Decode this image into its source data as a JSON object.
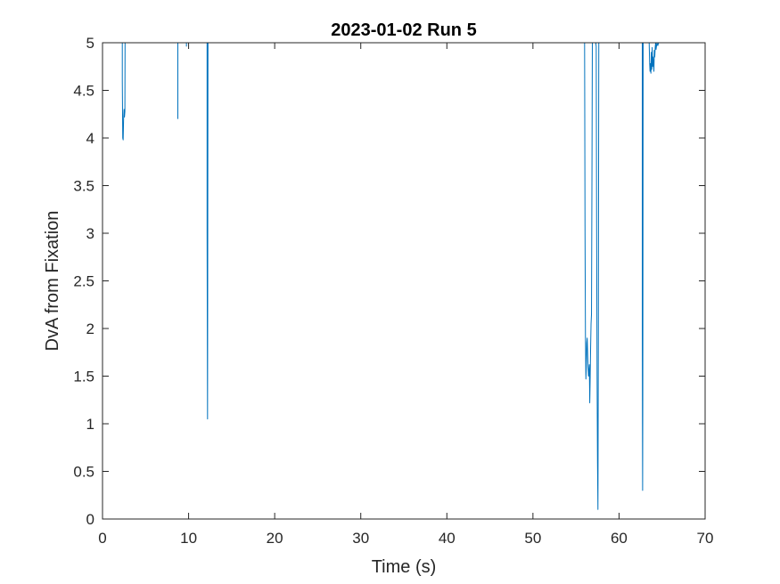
{
  "chart_data": {
    "type": "line",
    "title": "2023-01-02 Run 5",
    "xlabel": "Time (s)",
    "ylabel": "DvA from Fixation",
    "xlim": [
      0,
      70
    ],
    "ylim": [
      0,
      5
    ],
    "xticks": [
      0,
      10,
      20,
      30,
      40,
      50,
      60,
      70
    ],
    "yticks": [
      0,
      0.5,
      1,
      1.5,
      2,
      2.5,
      3,
      3.5,
      4,
      4.5,
      5
    ],
    "xtick_labels": [
      "0",
      "10",
      "20",
      "30",
      "40",
      "50",
      "60",
      "70"
    ],
    "ytick_labels": [
      "0",
      "0.5",
      "1",
      "1.5",
      "2",
      "2.5",
      "3",
      "3.5",
      "4",
      "4.5",
      "5"
    ],
    "grid": false,
    "line_color": "#0072BD",
    "series": [
      {
        "segments": [
          [
            [
              2.3,
              5
            ],
            [
              2.3,
              4.6
            ],
            [
              2.35,
              4.0
            ],
            [
              2.4,
              3.98
            ],
            [
              2.45,
              4.2
            ],
            [
              2.5,
              4.3
            ],
            [
              2.55,
              4.22
            ],
            [
              2.6,
              4.28
            ],
            [
              2.62,
              5
            ]
          ],
          [
            [
              8.75,
              5
            ],
            [
              8.75,
              4.2
            ]
          ],
          [
            [
              9.75,
              5
            ],
            [
              9.75,
              4.96
            ]
          ],
          [
            [
              12.15,
              5
            ],
            [
              12.15,
              3.0
            ],
            [
              12.18,
              1.8
            ],
            [
              12.2,
              1.05
            ],
            [
              12.25,
              5
            ]
          ],
          [
            [
              56.0,
              5
            ],
            [
              56.05,
              3.0
            ],
            [
              56.1,
              1.9
            ],
            [
              56.15,
              1.47
            ],
            [
              56.2,
              1.6
            ],
            [
              56.25,
              1.85
            ],
            [
              56.3,
              1.9
            ],
            [
              56.35,
              1.75
            ],
            [
              56.4,
              1.6
            ],
            [
              56.45,
              1.5
            ],
            [
              56.5,
              1.55
            ],
            [
              56.55,
              1.62
            ],
            [
              56.6,
              1.22
            ],
            [
              56.65,
              1.5
            ],
            [
              56.7,
              1.8
            ],
            [
              56.75,
              2.05
            ],
            [
              56.8,
              2.15
            ],
            [
              56.85,
              3.5
            ],
            [
              56.9,
              5
            ]
          ],
          [
            [
              57.3,
              5
            ],
            [
              57.35,
              4.96
            ],
            [
              57.4,
              3.0
            ],
            [
              57.45,
              1.5
            ],
            [
              57.5,
              0.6
            ],
            [
              57.55,
              0.1
            ],
            [
              57.6,
              2.0
            ],
            [
              57.65,
              5
            ]
          ],
          [
            [
              62.7,
              5
            ],
            [
              62.7,
              2.0
            ],
            [
              62.72,
              1.0
            ],
            [
              62.74,
              0.3
            ],
            [
              62.76,
              1.2
            ],
            [
              62.78,
              3.0
            ],
            [
              62.8,
              5
            ]
          ],
          [
            [
              63.5,
              5
            ],
            [
              63.55,
              4.8
            ],
            [
              63.6,
              4.7
            ],
            [
              63.65,
              4.78
            ],
            [
              63.7,
              4.68
            ],
            [
              63.75,
              4.9
            ],
            [
              63.8,
              4.72
            ],
            [
              63.85,
              4.95
            ],
            [
              63.9,
              4.75
            ],
            [
              63.95,
              4.85
            ],
            [
              64.0,
              4.78
            ],
            [
              64.05,
              4.7
            ],
            [
              64.1,
              4.92
            ],
            [
              64.15,
              4.85
            ],
            [
              64.2,
              4.95
            ],
            [
              64.25,
              5
            ],
            [
              64.3,
              4.93
            ],
            [
              64.4,
              5
            ],
            [
              64.5,
              4.97
            ],
            [
              64.6,
              5
            ]
          ]
        ]
      }
    ]
  }
}
